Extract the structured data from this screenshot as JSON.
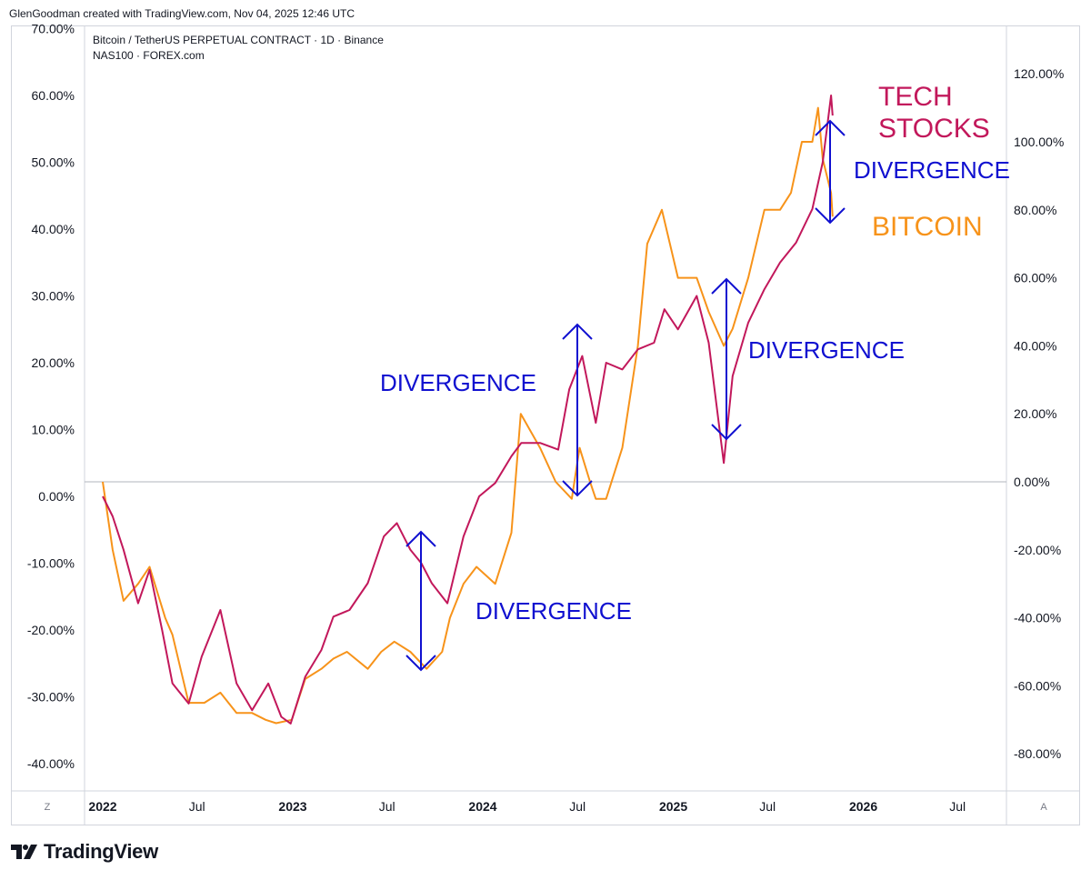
{
  "header": {
    "credit": "GlenGoodman created with TradingView.com, Nov 04, 2025 12:46 UTC"
  },
  "legend": {
    "line1": "Bitcoin / TetherUS PERPETUAL CONTRACT · 1D · Binance",
    "line2": "NAS100 · FOREX.com"
  },
  "footer": {
    "brand": "TradingView",
    "scale_left": "Z",
    "scale_right": "A"
  },
  "colors": {
    "nas100": "#c2185b",
    "bitcoin": "#f7931a",
    "annotation": "#1010d0",
    "grid": "#d1d4dc",
    "zero_line": "#b2b5be"
  },
  "chart_data": {
    "type": "line",
    "left_axis": {
      "ticks": [
        "70.00%",
        "60.00%",
        "50.00%",
        "40.00%",
        "30.00%",
        "20.00%",
        "10.00%",
        "0.00%",
        "-10.00%",
        "-20.00%",
        "-30.00%",
        "-40.00%"
      ],
      "range_pct": [
        -40,
        70
      ]
    },
    "right_axis": {
      "ticks": [
        "120.00%",
        "100.00%",
        "80.00%",
        "60.00%",
        "40.00%",
        "20.00%",
        "0.00%",
        "-20.00%",
        "-40.00%",
        "-60.00%",
        "-80.00%"
      ],
      "range_pct": [
        -80,
        120
      ]
    },
    "x_axis": {
      "ticks": [
        "2022",
        "Jul",
        "2023",
        "Jul",
        "2024",
        "Jul",
        "2025",
        "Jul",
        "2026",
        "Jul"
      ],
      "bold": [
        true,
        false,
        true,
        false,
        true,
        false,
        true,
        false,
        true,
        false
      ]
    },
    "series": [
      {
        "color": "#c2185b",
        "axis": "left",
        "x": [
          "2022-01-01",
          "2022-01-20",
          "2022-02-10",
          "2022-03-10",
          "2022-04-01",
          "2022-04-25",
          "2022-05-15",
          "2022-06-15",
          "2022-07-10",
          "2022-08-15",
          "2022-09-15",
          "2022-10-15",
          "2022-11-15",
          "2022-12-10",
          "2022-12-28",
          "2023-01-25",
          "2023-02-25",
          "2023-03-20",
          "2023-04-20",
          "2023-05-25",
          "2023-06-25",
          "2023-07-20",
          "2023-08-15",
          "2023-09-05",
          "2023-09-25",
          "2023-10-25",
          "2023-11-25",
          "2023-12-25",
          "2024-01-25",
          "2024-02-25",
          "2024-03-15",
          "2024-04-20",
          "2024-05-25",
          "2024-06-15",
          "2024-07-10",
          "2024-08-05",
          "2024-08-25",
          "2024-09-25",
          "2024-10-25",
          "2024-11-25",
          "2024-12-15",
          "2025-01-10",
          "2025-02-15",
          "2025-03-10",
          "2025-04-08",
          "2025-04-25",
          "2025-05-25",
          "2025-06-25",
          "2025-07-25",
          "2025-08-25",
          "2025-09-25",
          "2025-10-15",
          "2025-10-31",
          "2025-11-03"
        ],
        "y": [
          0,
          -3,
          -8,
          -16,
          -11,
          -20,
          -28,
          -31,
          -24,
          -17,
          -28,
          -32,
          -28,
          -33,
          -34,
          -27,
          -23,
          -18,
          -17,
          -13,
          -6,
          -4,
          -8,
          -10,
          -13,
          -16,
          -6,
          0,
          2,
          6,
          8,
          8,
          7,
          16,
          21,
          11,
          20,
          19,
          22,
          23,
          28,
          25,
          30,
          23,
          5,
          18,
          26,
          31,
          35,
          38,
          43,
          50,
          60,
          57
        ]
      },
      {
        "color": "#f7931a",
        "axis": "right",
        "x": [
          "2022-01-01",
          "2022-01-20",
          "2022-02-10",
          "2022-03-10",
          "2022-04-01",
          "2022-05-01",
          "2022-05-15",
          "2022-06-15",
          "2022-07-15",
          "2022-08-15",
          "2022-09-15",
          "2022-10-15",
          "2022-11-10",
          "2022-11-30",
          "2022-12-30",
          "2023-01-25",
          "2023-02-25",
          "2023-03-20",
          "2023-04-15",
          "2023-05-25",
          "2023-06-20",
          "2023-07-15",
          "2023-08-15",
          "2023-09-15",
          "2023-10-15",
          "2023-10-30",
          "2023-11-25",
          "2023-12-20",
          "2024-01-25",
          "2024-02-25",
          "2024-03-14",
          "2024-04-20",
          "2024-05-20",
          "2024-06-20",
          "2024-07-05",
          "2024-07-25",
          "2024-08-05",
          "2024-08-25",
          "2024-09-25",
          "2024-10-25",
          "2024-11-12",
          "2024-12-10",
          "2025-01-10",
          "2025-02-15",
          "2025-03-10",
          "2025-04-08",
          "2025-04-25",
          "2025-05-25",
          "2025-06-25",
          "2025-07-25",
          "2025-08-15",
          "2025-09-05",
          "2025-09-25",
          "2025-10-06",
          "2025-10-15",
          "2025-10-31",
          "2025-11-03"
        ],
        "y": [
          0,
          -20,
          -35,
          -30,
          -25,
          -40,
          -45,
          -65,
          -65,
          -62,
          -68,
          -68,
          -70,
          -71,
          -70,
          -58,
          -55,
          -52,
          -50,
          -55,
          -50,
          -47,
          -50,
          -55,
          -50,
          -40,
          -30,
          -25,
          -30,
          -15,
          20,
          10,
          0,
          -5,
          10,
          0,
          -5,
          -5,
          10,
          40,
          70,
          80,
          60,
          60,
          50,
          40,
          45,
          60,
          80,
          80,
          85,
          100,
          100,
          110,
          95,
          85,
          78
        ]
      }
    ],
    "annotations": [
      {
        "text": "TECH\nSTOCKS",
        "color": "#c2185b"
      },
      {
        "text": "BITCOIN",
        "color": "#f7931a"
      },
      {
        "text": "DIVERGENCE",
        "color": "#1010d0"
      },
      {
        "text": "DIVERGENCE",
        "color": "#1010d0"
      },
      {
        "text": "DIVERGENCE",
        "color": "#1010d0"
      },
      {
        "text": "DIVERGENCE",
        "color": "#1010d0"
      }
    ],
    "grid": false,
    "legend_position": "top-left"
  }
}
